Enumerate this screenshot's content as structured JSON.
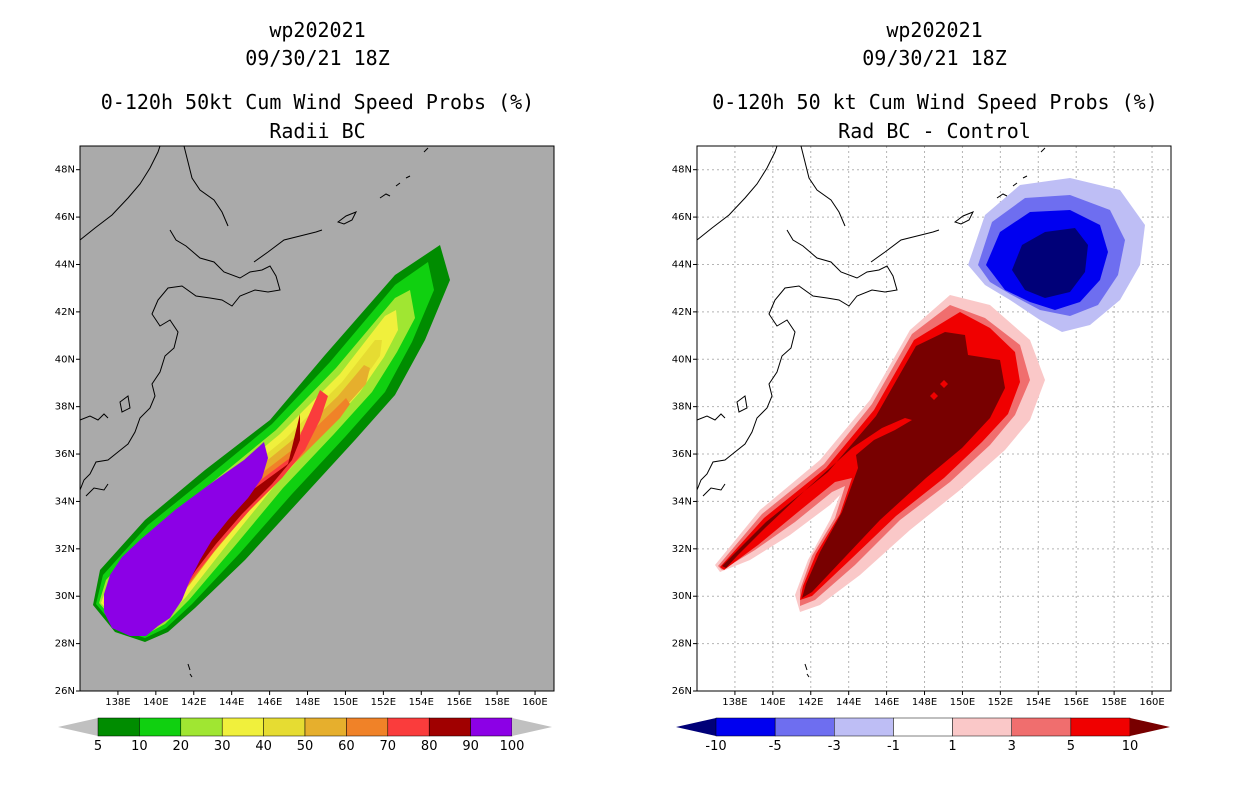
{
  "left": {
    "storm_id": "wp202021",
    "datetime": "09/30/21 18Z",
    "title": "0-120h 50kt Cum Wind Speed Probs (%)",
    "subtitle": "Radii BC",
    "colorbar": {
      "labels": [
        "5",
        "10",
        "20",
        "30",
        "40",
        "50",
        "60",
        "70",
        "80",
        "90",
        "100"
      ],
      "colors": [
        "#c0c0c0",
        "#008c00",
        "#10d010",
        "#a0e632",
        "#f0f03c",
        "#e6dc32",
        "#e6af2d",
        "#f08228",
        "#fa3c3c",
        "#a00000",
        "#8c00e6",
        "#c0c0c0"
      ]
    }
  },
  "right": {
    "storm_id": "wp202021",
    "datetime": "09/30/21 18Z",
    "title": "0-120h 50 kt Cum Wind Speed Probs (%)",
    "subtitle": "Rad BC - Control",
    "colorbar": {
      "labels": [
        "-10",
        "-5",
        "-3",
        "-1",
        "1",
        "3",
        "5",
        "10"
      ],
      "colors": [
        "#000078",
        "#0000f0",
        "#6e6ef0",
        "#bebef5",
        "#ffffff",
        "#fac8c8",
        "#f06e6e",
        "#f00000",
        "#780000"
      ]
    }
  },
  "axes": {
    "lon_labels": [
      "138E",
      "140E",
      "142E",
      "144E",
      "146E",
      "148E",
      "150E",
      "152E",
      "154E",
      "156E",
      "158E",
      "160E"
    ],
    "lat_labels": [
      "26N",
      "28N",
      "30N",
      "32N",
      "34N",
      "36N",
      "38N",
      "40N",
      "42N",
      "44N",
      "46N",
      "48N"
    ]
  },
  "colors": {
    "plot_bg_left": "#aaaaaa",
    "plot_bg_right": "#ffffff"
  }
}
